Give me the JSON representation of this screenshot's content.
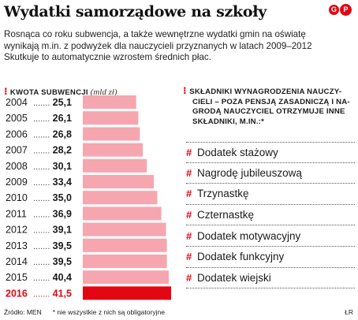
{
  "header": {
    "title": "Wydatki samorządowe na szkoły",
    "brand_mark": "GP",
    "intro_lines": [
      "Rosnąca co roku subwencja, a także wewnętrzne wydatki gmin na oświatę",
      "wynikają m.in. z podwyżek dla nauczycieli przyznanych w latach 2009–2012",
      "Skutkuje to automatycznie wzrostem średnich płac."
    ]
  },
  "chart_data": {
    "type": "bar",
    "orientation": "horizontal",
    "title": "KWOTA SUBWENCJI",
    "unit": "(mld zł)",
    "categories": [
      "2004",
      "2005",
      "2006",
      "2007",
      "2008",
      "2009",
      "2010",
      "2011",
      "2012",
      "2013",
      "2014",
      "2015",
      "2016"
    ],
    "values": [
      25.1,
      26.1,
      26.8,
      28.2,
      30.1,
      33.4,
      35.0,
      36.9,
      39.1,
      39.5,
      39.5,
      40.4,
      41.5
    ],
    "value_labels": [
      "25,1",
      "26,1",
      "26,8",
      "28,2",
      "30,1",
      "33,4",
      "35,0",
      "36,9",
      "39,1",
      "39,5",
      "39,5",
      "40,4",
      "41,5"
    ],
    "highlight_index": 12,
    "colors": {
      "bar": "#f5a6ae",
      "highlight": "#e30613",
      "text": "#1a1a1a"
    }
  },
  "components": {
    "heading_lines": [
      "SKŁADNIKI WYNAGRODZENIA NAUCZY-",
      "CIELI – POZA PENSJĄ ZASADNICZĄ I NA-",
      "GRODĄ NAUCZYCIEL OTRZYMUJE INNE",
      "SKŁADNIKI, M.IN.:*"
    ],
    "items": [
      "Dodatek stażowy",
      "Nagrodę jubileuszową",
      "Trzynastkę",
      "Czternastkę",
      "Dodatek motywacyjny",
      "Dodatek funkcyjny",
      "Dodatek wiejski"
    ]
  },
  "footer": {
    "source": "Źródło: MEN",
    "note": "* nie wszystkie z nich są obligatoryjne",
    "credit": "ŁR"
  },
  "icons": {
    "bullet": "dotted-marker-icon",
    "list_marker": "hash-icon"
  }
}
